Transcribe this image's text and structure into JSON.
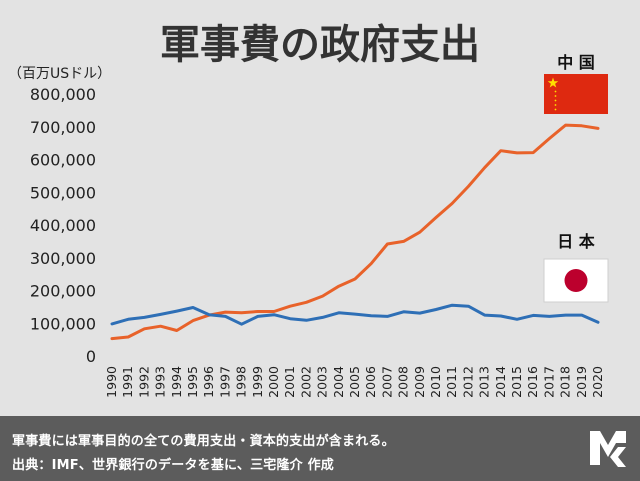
{
  "chart_data": {
    "type": "line",
    "title": "軍事費の政府支出",
    "ylabel": "（百万USドル）",
    "xlabel": "",
    "ylim": [
      0,
      800000
    ],
    "yticks": [
      0,
      100000,
      200000,
      300000,
      400000,
      500000,
      600000,
      700000,
      800000
    ],
    "ytick_labels": [
      "0",
      "100,000",
      "200,000",
      "300,000",
      "400,000",
      "500,000",
      "600,000",
      "700,000",
      "800,000"
    ],
    "x": [
      "1990",
      "1991",
      "1992",
      "1993",
      "1994",
      "1995",
      "1996",
      "1997",
      "1998",
      "1999",
      "2000",
      "2001",
      "2002",
      "2003",
      "2004",
      "2005",
      "2006",
      "2007",
      "2008",
      "2009",
      "2010",
      "2011",
      "2012",
      "2013",
      "2014",
      "2015",
      "2016",
      "2017",
      "2018",
      "2019",
      "2020"
    ],
    "grid": false,
    "series": [
      {
        "name": "中 国",
        "color": "#e8622a",
        "flag": "china-flag",
        "values": [
          53000,
          58000,
          83000,
          91000,
          78000,
          108000,
          125000,
          134000,
          132000,
          136000,
          136000,
          152000,
          164000,
          183000,
          213000,
          235000,
          282000,
          342000,
          350000,
          378000,
          423000,
          466000,
          518000,
          575000,
          627000,
          620000,
          621000,
          664000,
          705000,
          703000,
          695000
        ]
      },
      {
        "name": "日 本",
        "color": "#2e6fb6",
        "flag": "japan-flag",
        "values": [
          98000,
          112000,
          118000,
          127000,
          137000,
          148000,
          126000,
          121000,
          97000,
          121000,
          126000,
          114000,
          109000,
          118000,
          132000,
          128000,
          123000,
          121000,
          135000,
          131000,
          142000,
          155000,
          152000,
          125000,
          122000,
          112000,
          124000,
          121000,
          125000,
          125000,
          103000
        ]
      }
    ]
  },
  "footer": {
    "line1": "軍事費には軍事目的の全ての費用支出・資本的支出が含まれる。",
    "line2": "出典：IMF、世界銀行のデータを基に、三宅隆介 作成"
  },
  "colors": {
    "background": "#e3e3e3",
    "footer_bg": "#5c5c5c",
    "china_red": "#de2910",
    "china_star": "#ffde00",
    "japan_red": "#bc002d"
  },
  "logo": "mr-monogram-logo"
}
